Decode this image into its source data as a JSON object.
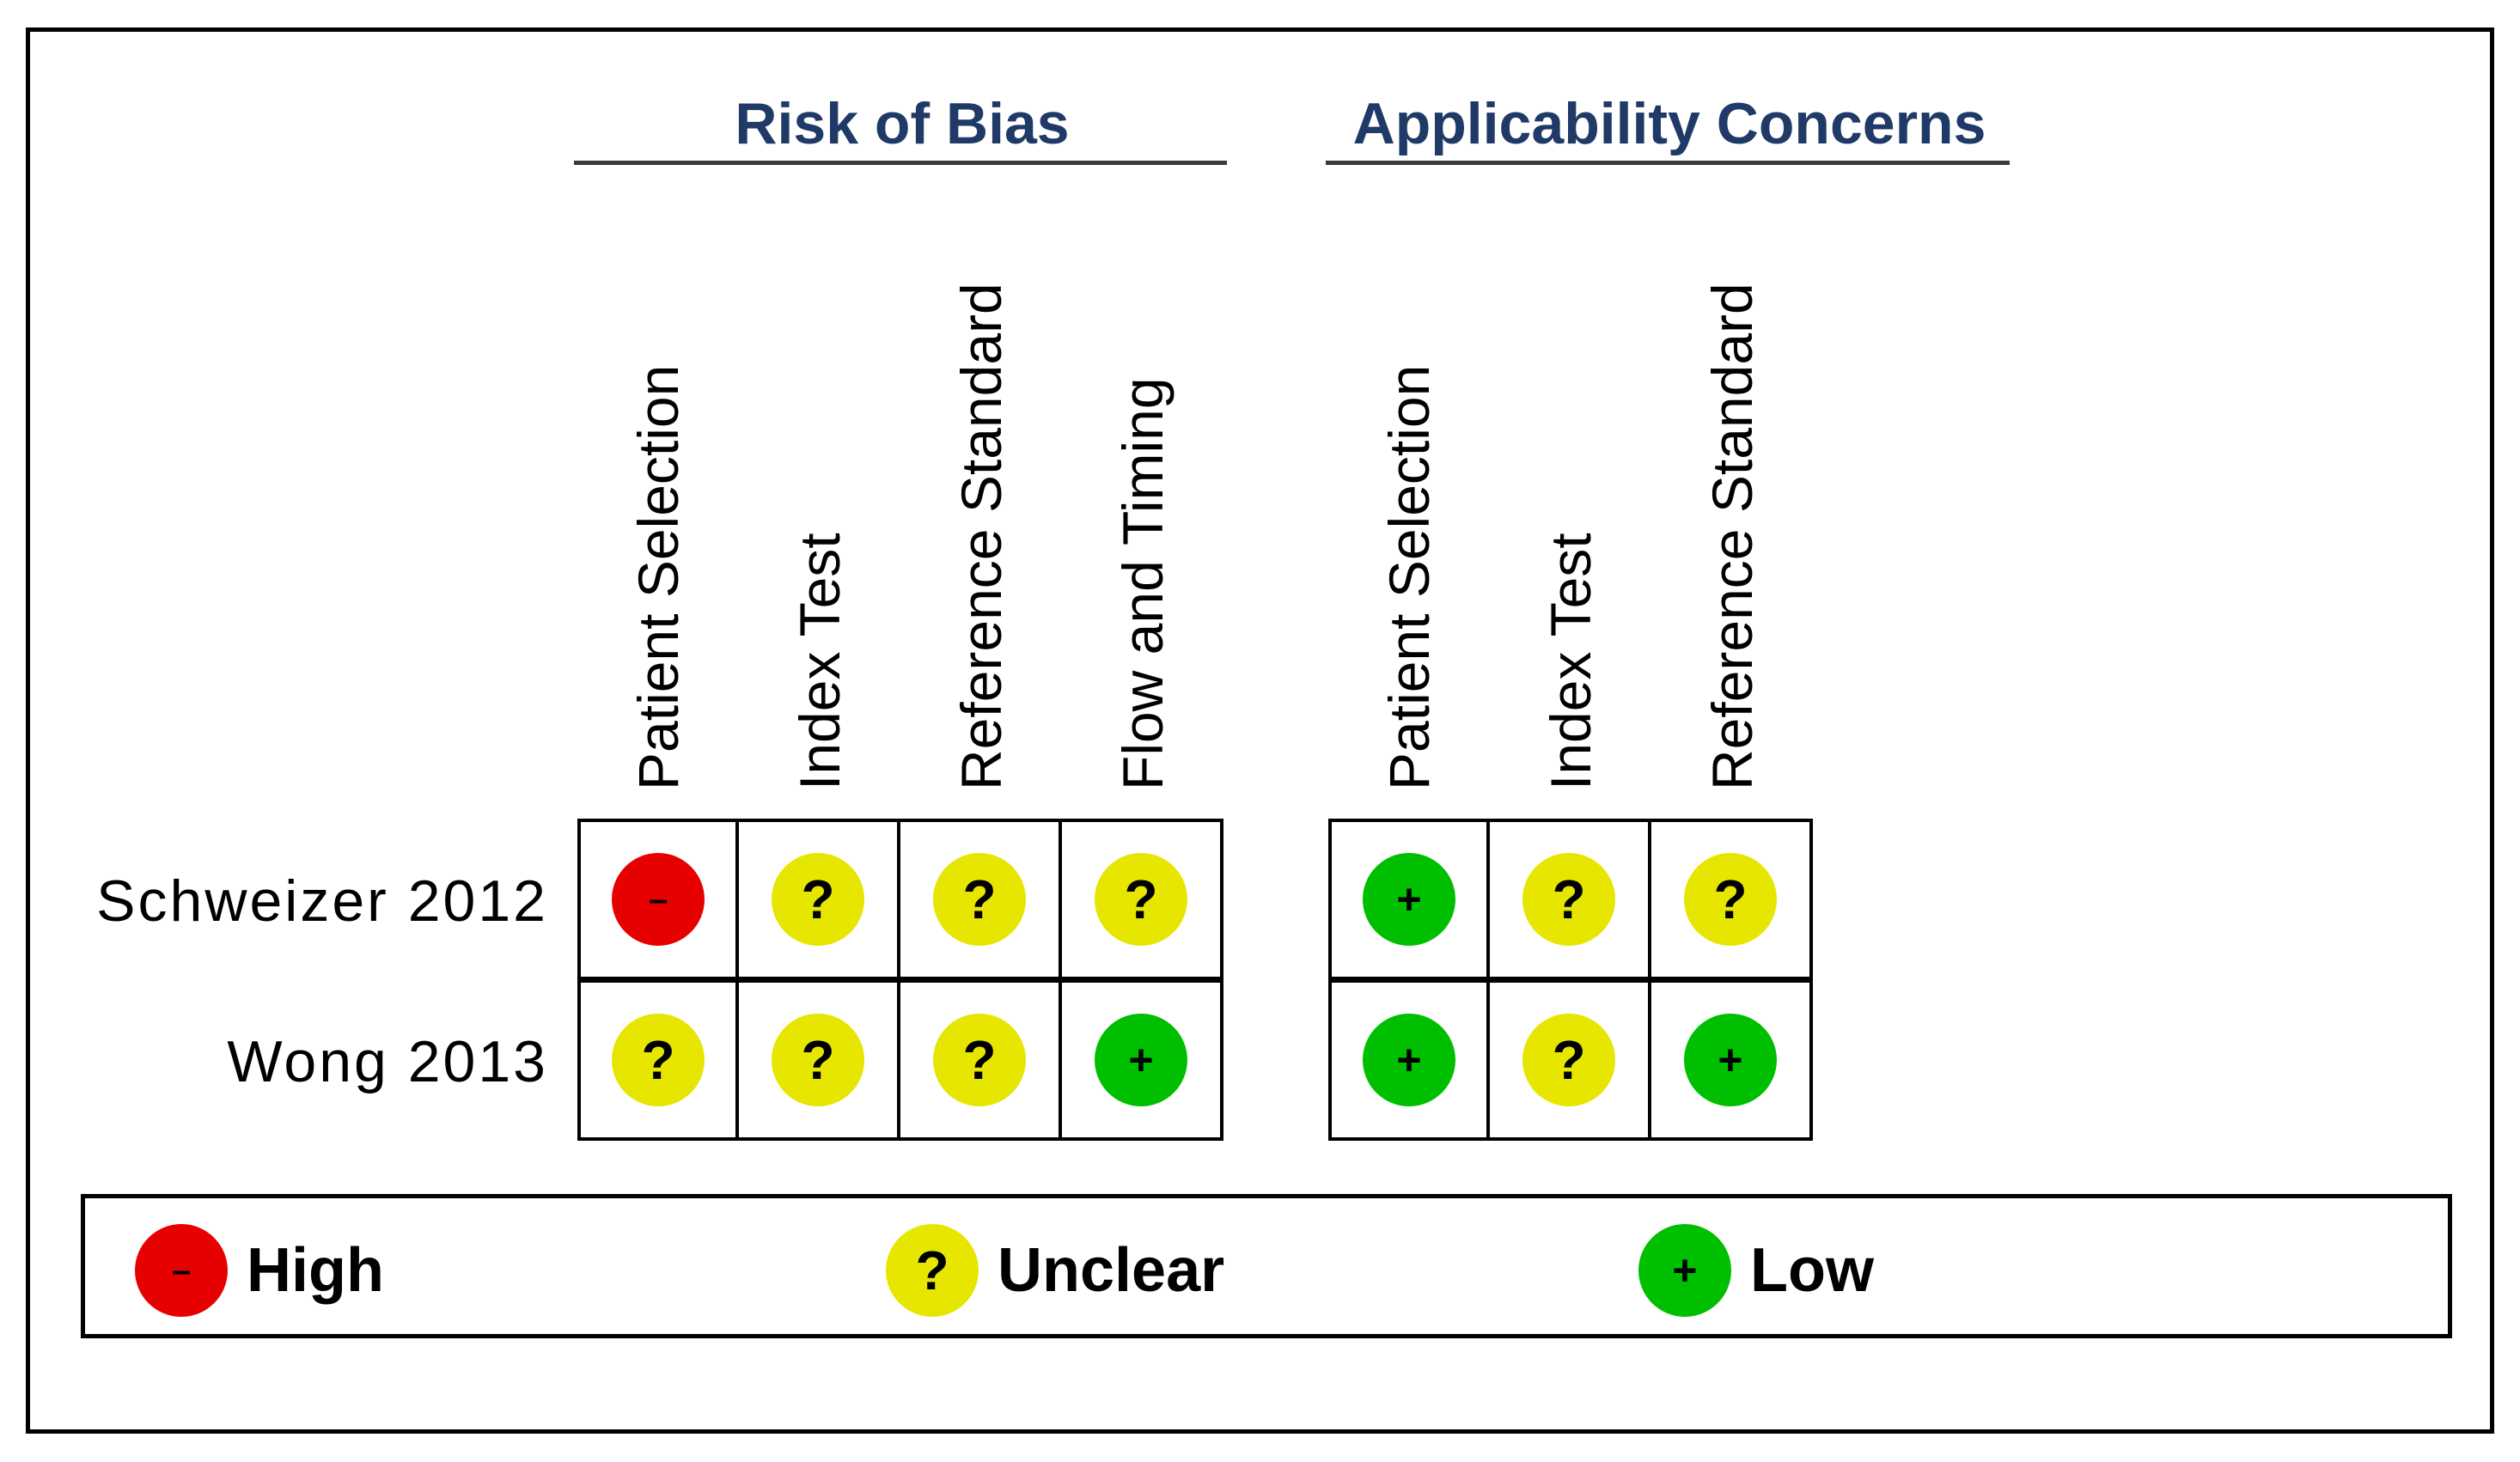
{
  "groups": [
    {
      "title": "Risk of Bias",
      "columns": [
        "Patient Selection",
        "Index Test",
        "Reference Standard",
        "Flow and Timing"
      ]
    },
    {
      "title": "Applicability Concerns",
      "columns": [
        "Patient Selection",
        "Index Test",
        "Reference Standard"
      ]
    }
  ],
  "studies": [
    {
      "name": "Schweizer 2012",
      "risk": [
        "high",
        "unclear",
        "unclear",
        "unclear"
      ],
      "applicability": [
        "low",
        "unclear",
        "unclear"
      ]
    },
    {
      "name": "Wong 2013",
      "risk": [
        "unclear",
        "unclear",
        "unclear",
        "low"
      ],
      "applicability": [
        "low",
        "unclear",
        "low"
      ]
    }
  ],
  "symbols": {
    "high": "–",
    "unclear": "?",
    "low": "+"
  },
  "colors": {
    "high": "#e60000",
    "unclear": "#e6e600",
    "low": "#00bf00",
    "title": "#1f3a66"
  },
  "legend": [
    {
      "key": "high",
      "label": "High"
    },
    {
      "key": "unclear",
      "label": "Unclear"
    },
    {
      "key": "low",
      "label": "Low"
    }
  ]
}
